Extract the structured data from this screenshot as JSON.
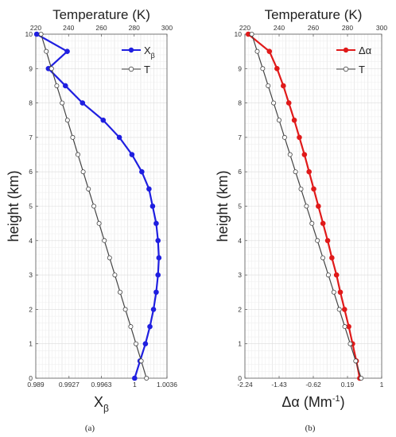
{
  "chart_data": [
    {
      "type": "line",
      "panel": "a",
      "caption": "(a)",
      "top_axis_title": "Temperature (K)",
      "top_ticks": [
        "220",
        "240",
        "260",
        "280",
        "300"
      ],
      "top_lim": [
        220,
        300
      ],
      "ylabel": "height (km)",
      "y_ticks": [
        "0",
        "1",
        "2",
        "3",
        "4",
        "5",
        "6",
        "7",
        "8",
        "9",
        "10"
      ],
      "ylim": [
        0,
        10
      ],
      "xlabel": "X",
      "xlabel_sub": "β",
      "x_ticks": [
        "0.989",
        "0.9927",
        "0.9963",
        "1",
        "1.0036"
      ],
      "x_tick_values": [
        0.989,
        0.9927,
        0.9963,
        1.0,
        1.0036
      ],
      "xlim": [
        0.989,
        1.0036
      ],
      "grid": true,
      "legend": "top-right",
      "series": [
        {
          "name": "X",
          "name_sub": "β",
          "color": "#1f1fe0",
          "axis": "bottom",
          "marker": "filled",
          "y": [
            0,
            0.5,
            1,
            1.5,
            2,
            2.5,
            3,
            3.5,
            4,
            4.5,
            5,
            5.5,
            6,
            6.5,
            7,
            7.5,
            8,
            8.5,
            9,
            9.5,
            10
          ],
          "x": [
            1.0,
            1.0006,
            1.0012,
            1.0017,
            1.0021,
            1.0024,
            1.0026,
            1.0027,
            1.0026,
            1.0024,
            1.002,
            1.0016,
            1.0008,
            0.9997,
            0.9983,
            0.9965,
            0.9942,
            0.9923,
            0.9904,
            0.9925,
            0.9891
          ]
        },
        {
          "name": "T",
          "color": "#444444",
          "axis": "top",
          "marker": "open",
          "y": [
            0,
            0.5,
            1,
            1.5,
            2,
            2.5,
            3,
            3.5,
            4,
            4.5,
            5,
            5.5,
            6,
            6.5,
            7,
            7.5,
            8,
            8.5,
            9,
            9.5,
            10
          ],
          "x": [
            287.5,
            284.3,
            281.1,
            277.9,
            274.6,
            271.4,
            268.2,
            265.0,
            261.8,
            258.6,
            255.4,
            252.1,
            248.9,
            245.7,
            242.5,
            239.3,
            236.1,
            232.8,
            229.6,
            226.4,
            223.2
          ]
        }
      ]
    },
    {
      "type": "line",
      "panel": "b",
      "caption": "(b)",
      "top_axis_title": "Temperature (K)",
      "top_ticks": [
        "220",
        "240",
        "260",
        "280",
        "300"
      ],
      "top_lim": [
        220,
        300
      ],
      "ylabel": "height (km)",
      "y_ticks": [
        "0",
        "1",
        "2",
        "3",
        "4",
        "5",
        "6",
        "7",
        "8",
        "9",
        "10"
      ],
      "ylim": [
        0,
        10
      ],
      "xlabel": "Δα (Mm",
      "xlabel_sup": "-1",
      "xlabel_end": ")",
      "x_ticks": [
        "-2.24",
        "-1.43",
        "-0.62",
        "0.19",
        "1"
      ],
      "x_tick_values": [
        -2.24,
        -1.43,
        -0.62,
        0.19,
        1.0
      ],
      "xlim": [
        -2.24,
        1.0
      ],
      "grid": true,
      "legend": "top-right",
      "series": [
        {
          "name": "Δα",
          "color": "#e01a1a",
          "axis": "bottom",
          "marker": "filled",
          "y": [
            0,
            0.5,
            1,
            1.5,
            2,
            2.5,
            3,
            3.5,
            4,
            4.5,
            5,
            5.5,
            6,
            6.5,
            7,
            7.5,
            8,
            8.5,
            9,
            9.5,
            10
          ],
          "x": [
            0.48,
            0.4,
            0.31,
            0.22,
            0.12,
            0.02,
            -0.07,
            -0.18,
            -0.28,
            -0.39,
            -0.5,
            -0.61,
            -0.72,
            -0.83,
            -0.95,
            -1.07,
            -1.2,
            -1.33,
            -1.48,
            -1.66,
            -2.16
          ]
        },
        {
          "name": "T",
          "color": "#444444",
          "axis": "top",
          "marker": "open",
          "y": [
            0,
            0.5,
            1,
            1.5,
            2,
            2.5,
            3,
            3.5,
            4,
            4.5,
            5,
            5.5,
            6,
            6.5,
            7,
            7.5,
            8,
            8.5,
            9,
            9.5,
            10
          ],
          "x": [
            288.0,
            284.8,
            281.6,
            278.4,
            275.2,
            272.0,
            268.8,
            265.6,
            262.4,
            259.2,
            256.0,
            252.8,
            249.6,
            246.4,
            243.2,
            240.0,
            236.8,
            233.6,
            230.4,
            227.2,
            224.0
          ]
        }
      ]
    }
  ]
}
